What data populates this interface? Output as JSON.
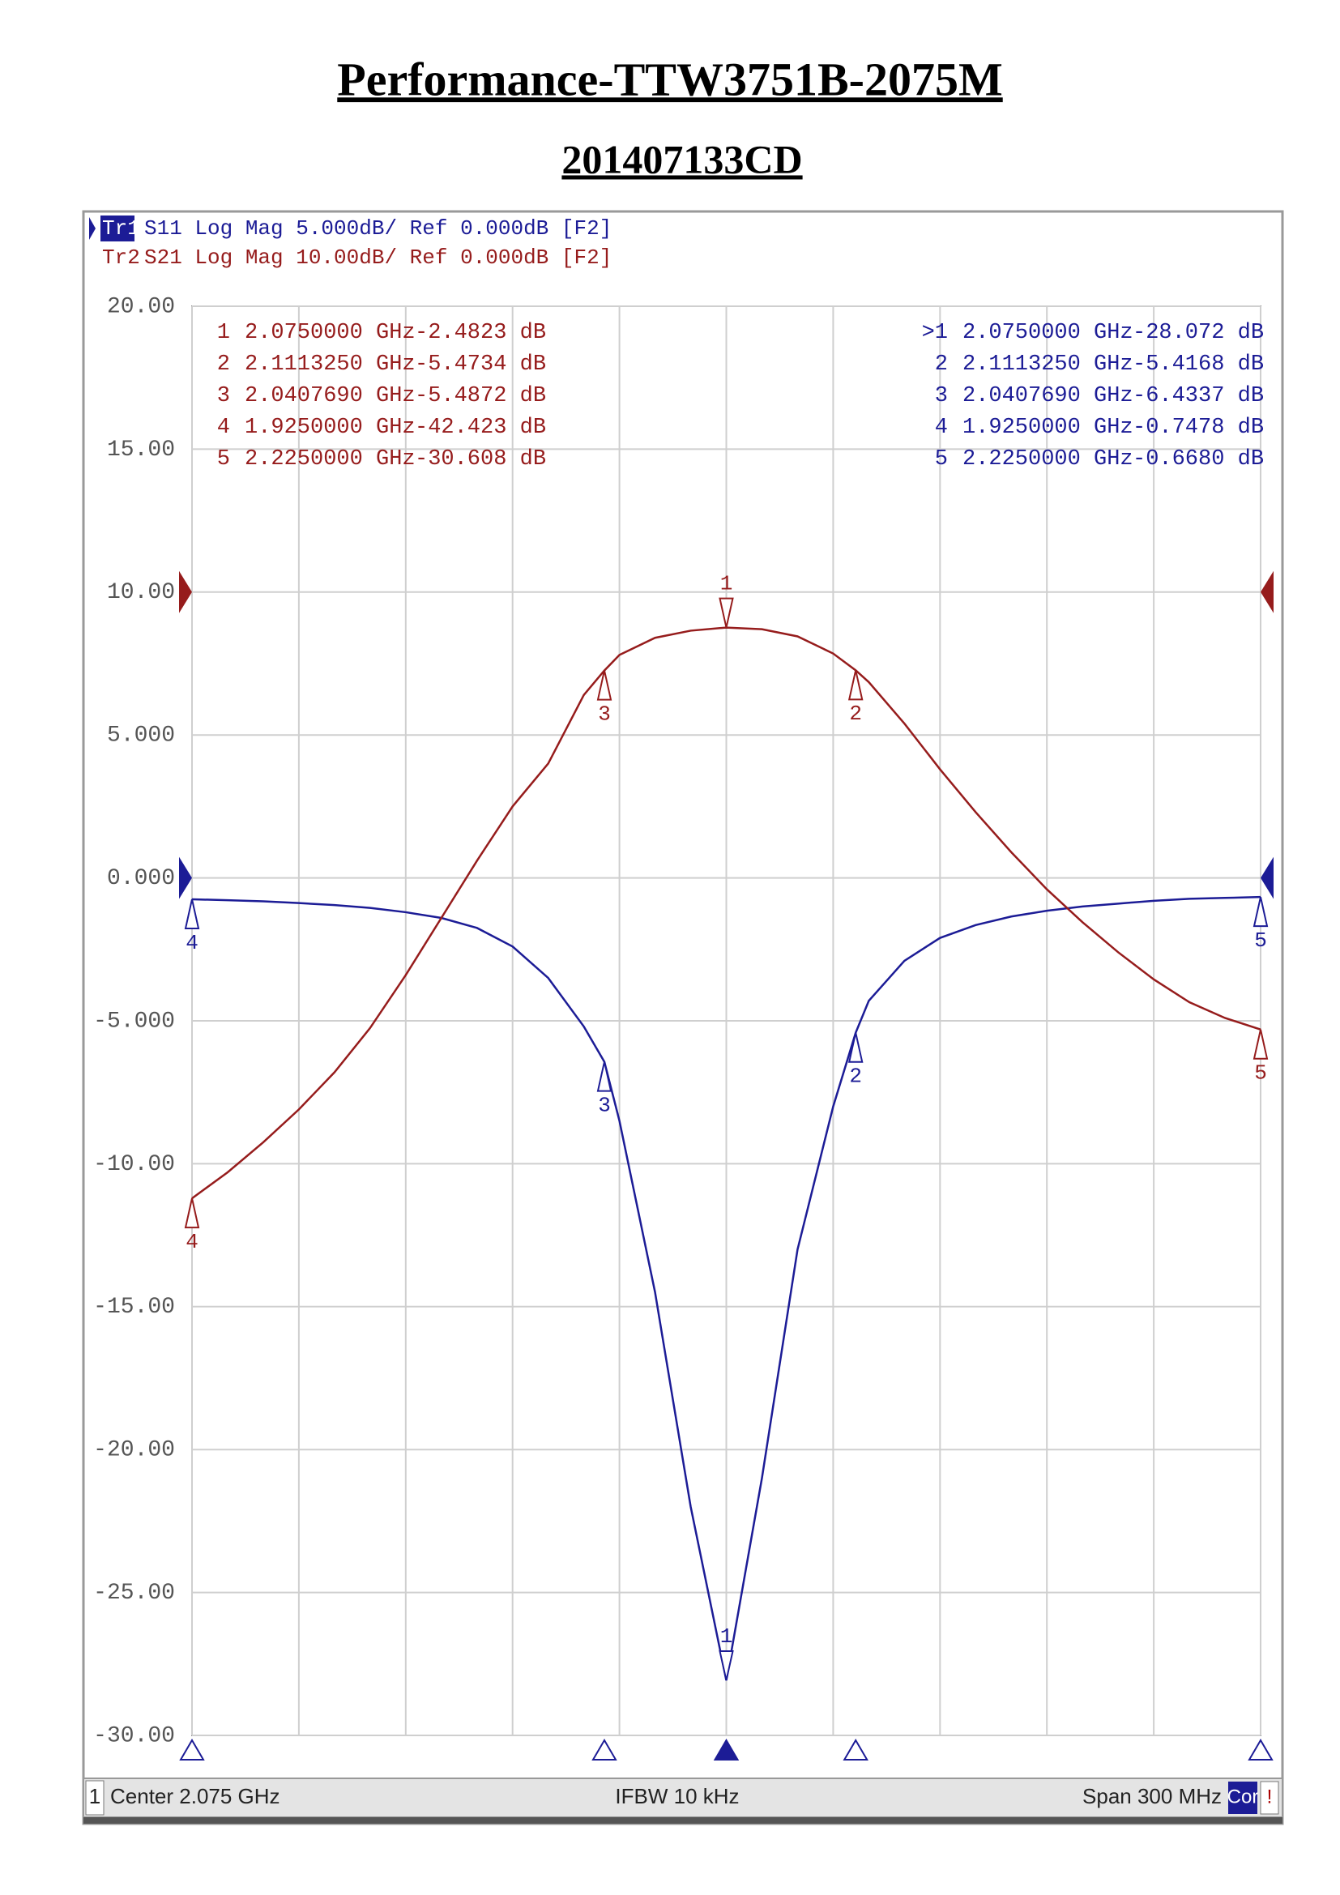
{
  "chart_data": {
    "type": "line",
    "title": "Performance-TTW3751B-2075M",
    "subtitle": "201407133CD",
    "x": [
      1.925,
      1.935,
      1.945,
      1.955,
      1.965,
      1.975,
      1.985,
      1.995,
      2.005,
      2.015,
      2.025,
      2.035,
      2.040769,
      2.045,
      2.055,
      2.065,
      2.075,
      2.085,
      2.095,
      2.105,
      2.111325,
      2.115,
      2.125,
      2.135,
      2.145,
      2.155,
      2.165,
      2.175,
      2.185,
      2.195,
      2.205,
      2.215,
      2.225
    ],
    "xlim": [
      1.925,
      2.225
    ],
    "xticks": [
      1.925,
      1.955,
      1.985,
      2.015,
      2.045,
      2.075,
      2.105,
      2.135,
      2.165,
      2.195,
      2.225
    ],
    "ylim": [
      -30,
      20
    ],
    "yticks": [
      {
        "value": 20,
        "label": "20.00"
      },
      {
        "value": 15,
        "label": "15.00"
      },
      {
        "value": 10,
        "label": "10.00"
      },
      {
        "value": 5,
        "label": "5.000"
      },
      {
        "value": 0,
        "label": "0.000"
      },
      {
        "value": -5,
        "label": "-5.000"
      },
      {
        "value": -10,
        "label": "-10.00"
      },
      {
        "value": -15,
        "label": "-15.00"
      },
      {
        "value": -20,
        "label": "-20.00"
      },
      {
        "value": -25,
        "label": "-25.00"
      },
      {
        "value": -30,
        "label": "-30.00"
      }
    ],
    "y2lim": [
      -80,
      20
    ],
    "grid": true,
    "series": [
      {
        "name": "Tr1",
        "settings": "S11 Log Mag 5.000dB/ Ref 0.000dB [F2]",
        "color": "#1c1c96",
        "ref": 0,
        "values": [
          -0.7478,
          -0.78,
          -0.82,
          -0.88,
          -0.95,
          -1.05,
          -1.2,
          -1.4,
          -1.75,
          -2.4,
          -3.5,
          -5.2,
          -6.4337,
          -8.5,
          -14.5,
          -22,
          -28.072,
          -21,
          -13,
          -8,
          -5.4168,
          -4.3,
          -2.9,
          -2.1,
          -1.65,
          -1.35,
          -1.15,
          -1.0,
          -0.9,
          -0.8,
          -0.73,
          -0.7,
          -0.668
        ],
        "markers": [
          {
            "name": "1",
            "x": 2.075
          },
          {
            "name": "2",
            "x": 2.111325
          },
          {
            "name": "3",
            "x": 2.040769
          },
          {
            "name": "4",
            "x": 1.925
          },
          {
            "name": "5",
            "x": 2.225
          }
        ],
        "marker_table": [
          {
            "id": ">1",
            "stimulus": "2.0750000 GHz",
            "response": "-28.072 dB"
          },
          {
            "id": "2",
            "stimulus": "2.1113250 GHz",
            "response": "-5.4168 dB"
          },
          {
            "id": "3",
            "stimulus": "2.0407690 GHz",
            "response": "-6.4337 dB"
          },
          {
            "id": "4",
            "stimulus": "1.9250000 GHz",
            "response": "-0.7478 dB"
          },
          {
            "id": "5",
            "stimulus": "2.2250000 GHz",
            "response": "-0.6680 dB"
          }
        ]
      },
      {
        "name": "Tr2",
        "settings": "S21 Log Mag 10.00dB/ Ref 0.000dB [F2]",
        "color": "#961c1c",
        "axis": "y2",
        "ref": 0,
        "values": [
          -42.423,
          -40.6,
          -38.5,
          -36.2,
          -33.6,
          -30.5,
          -26.8,
          -22.8,
          -18.8,
          -15,
          -12,
          -7.2,
          -5.4872,
          -4.4,
          -3.2,
          -2.7,
          -2.4823,
          -2.6,
          -3.1,
          -4.3,
          -5.4734,
          -6.3,
          -9.2,
          -12.4,
          -15.4,
          -18.2,
          -20.8,
          -23.1,
          -25.2,
          -27.1,
          -28.7,
          -29.8,
          -30.608
        ],
        "markers": [
          {
            "name": "1",
            "x": 2.075
          },
          {
            "name": "2",
            "x": 2.111325
          },
          {
            "name": "3",
            "x": 2.040769
          },
          {
            "name": "4",
            "x": 1.925
          },
          {
            "name": "5",
            "x": 2.225
          }
        ],
        "marker_table": [
          {
            "id": "1",
            "stimulus": "2.0750000 GHz",
            "response": "-2.4823 dB"
          },
          {
            "id": "2",
            "stimulus": "2.1113250 GHz",
            "response": "-5.4734 dB"
          },
          {
            "id": "3",
            "stimulus": "2.0407690 GHz",
            "response": "-5.4872 dB"
          },
          {
            "id": "4",
            "stimulus": "1.9250000 GHz",
            "response": "-42.423 dB"
          },
          {
            "id": "5",
            "stimulus": "2.2250000 GHz",
            "response": "-30.608 dB"
          }
        ]
      }
    ],
    "footer": {
      "channel": "1",
      "center": "Center 2.075 GHz",
      "ifbw": "IFBW 10 kHz",
      "span": "Span 300 MHz",
      "cor": "Cor",
      "alert": "!"
    }
  }
}
